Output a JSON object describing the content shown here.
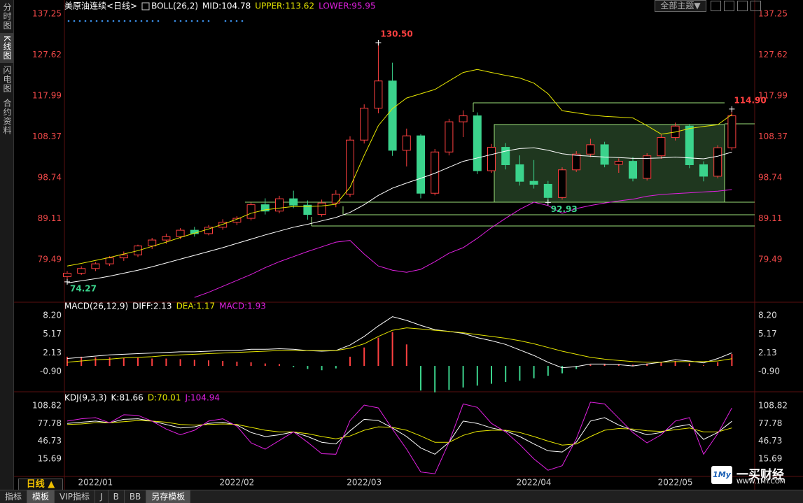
{
  "chart_data": [
    {
      "type": "candlestick",
      "title": "美原油连续<日线>",
      "indicator": "BOLL(26,2)",
      "ylim": [
        69.8,
        137.25
      ],
      "yticks": [
        137.25,
        127.62,
        117.99,
        108.37,
        98.74,
        89.11,
        79.49
      ],
      "tick_color": "#f04848",
      "up_color": "#ff4040",
      "down_color": "#3bd38c",
      "open": [
        75.5,
        76.3,
        77.4,
        78.5,
        79.9,
        80.6,
        82.7,
        84.1,
        84.9,
        86.4,
        85.6,
        87.1,
        88.3,
        89.2,
        92.4,
        90.9,
        93.8,
        92.3,
        90.1,
        92.8,
        94.9,
        107.6,
        115.1,
        121.5,
        105.2,
        108.6,
        95.1,
        104.8,
        111.9,
        113.3,
        100.4,
        105.9,
        101.8,
        97.9,
        97.2,
        94.1,
        100.6,
        104.3,
        106.5,
        101.9,
        102.6,
        98.6,
        103.9,
        108.2,
        110.9,
        101.8,
        99.1,
        105.8
      ],
      "high": [
        76.8,
        77.9,
        78.9,
        80.3,
        81.4,
        83.0,
        84.6,
        85.6,
        86.9,
        87.2,
        87.6,
        89.0,
        89.7,
        92.9,
        93.9,
        94.5,
        95.7,
        93.4,
        93.6,
        95.8,
        108.5,
        116.0,
        130.5,
        125.8,
        110.3,
        109.0,
        105.5,
        112.6,
        114.6,
        114.1,
        106.7,
        106.9,
        104.0,
        102.9,
        98.0,
        101.2,
        105.0,
        107.9,
        107.2,
        103.3,
        103.6,
        104.5,
        108.9,
        111.7,
        111.4,
        102.6,
        106.4,
        114.9
      ],
      "low": [
        74.27,
        75.9,
        76.8,
        78.0,
        79.2,
        80.1,
        82.0,
        83.2,
        84.3,
        84.9,
        85.2,
        86.5,
        87.6,
        88.7,
        90.1,
        90.4,
        91.6,
        88.9,
        89.6,
        91.8,
        94.2,
        106.8,
        113.9,
        103.9,
        101.4,
        93.9,
        94.6,
        104.0,
        108.3,
        99.6,
        99.9,
        100.7,
        96.9,
        96.2,
        92.93,
        93.6,
        100.1,
        103.6,
        101.2,
        99.9,
        97.9,
        98.1,
        103.2,
        107.5,
        101.0,
        97.9,
        98.6,
        105.2
      ],
      "close": [
        76.3,
        77.4,
        78.5,
        79.9,
        80.6,
        82.7,
        84.1,
        84.9,
        86.4,
        85.6,
        87.1,
        88.3,
        89.2,
        92.4,
        90.9,
        93.8,
        92.3,
        90.1,
        92.8,
        94.9,
        107.6,
        115.1,
        121.5,
        105.2,
        108.6,
        95.1,
        104.8,
        111.9,
        113.3,
        100.4,
        105.9,
        101.8,
        97.9,
        97.2,
        94.1,
        100.6,
        104.3,
        106.5,
        101.9,
        102.6,
        98.6,
        103.9,
        108.2,
        110.9,
        101.8,
        99.1,
        105.8,
        113.3
      ],
      "series": [
        {
          "name": "MID:104.78",
          "color": "#ffffff",
          "values": [
            74.0,
            74.5,
            75.0,
            75.6,
            76.3,
            77.0,
            77.8,
            78.7,
            79.6,
            80.5,
            81.4,
            82.3,
            83.3,
            84.3,
            85.3,
            86.2,
            87.1,
            87.8,
            88.6,
            89.4,
            90.6,
            92.4,
            94.6,
            96.3,
            97.5,
            98.6,
            99.8,
            101.2,
            102.6,
            103.4,
            104.2,
            105.0,
            105.6,
            105.8,
            105.2,
            104.4,
            104.0,
            103.8,
            103.6,
            103.5,
            103.3,
            103.3,
            103.4,
            103.6,
            103.4,
            103.2,
            103.8,
            104.78
          ]
        },
        {
          "name": "UPPER:113.62",
          "color": "#e6e600",
          "values": [
            78.0,
            78.6,
            79.3,
            80.0,
            80.8,
            81.6,
            82.6,
            83.6,
            84.7,
            85.7,
            86.7,
            87.8,
            89.0,
            90.4,
            91.2,
            91.6,
            92.0,
            92.0,
            92.1,
            92.5,
            96.5,
            104.0,
            111.0,
            115.0,
            117.5,
            118.5,
            119.5,
            121.5,
            123.5,
            124.2,
            123.5,
            122.8,
            122.2,
            121.0,
            118.5,
            114.5,
            114.0,
            113.5,
            113.2,
            113.0,
            112.8,
            111.0,
            109.0,
            109.5,
            110.3,
            110.8,
            111.2,
            113.62
          ]
        },
        {
          "name": "LOWER:95.95",
          "color": "#e020e0",
          "values": [
            null,
            null,
            null,
            null,
            null,
            null,
            null,
            null,
            null,
            70.6,
            71.8,
            73.2,
            74.6,
            76.0,
            77.6,
            79.0,
            80.2,
            81.4,
            82.5,
            83.6,
            84.0,
            80.8,
            78.0,
            77.0,
            76.5,
            77.2,
            79.0,
            81.0,
            82.3,
            84.5,
            87.0,
            89.2,
            91.3,
            93.0,
            92.2,
            90.4,
            91.5,
            92.2,
            92.8,
            93.3,
            93.7,
            94.4,
            94.8,
            95.0,
            95.2,
            95.4,
            95.6,
            95.95
          ]
        }
      ],
      "annotations": [
        {
          "text": "130.50",
          "value": 130.5,
          "color": "#ff4040"
        },
        {
          "text": "74.27",
          "value": 74.27,
          "color": "#3bd38c"
        },
        {
          "text": "92.93",
          "value": 92.93,
          "color": "#3bd38c"
        },
        {
          "text": "114.90",
          "value": 114.9,
          "color": "#ff4040"
        }
      ]
    },
    {
      "type": "macd",
      "indicator": "MACD(26,12,9)",
      "ylim": [
        -4.2,
        9.45
      ],
      "yticks": [
        {
          "value": 8.2,
          "label": "8.20"
        },
        5.17,
        2.13,
        {
          "value": -0.9,
          "label": "-0.90"
        }
      ],
      "tick_color": "#dddddd",
      "series": [
        {
          "name": "DIFF:2.13",
          "color": "#ffffff",
          "values": [
            1.2,
            1.4,
            1.6,
            1.8,
            1.9,
            2.0,
            2.1,
            2.2,
            2.3,
            2.3,
            2.4,
            2.5,
            2.5,
            2.7,
            2.7,
            2.8,
            2.7,
            2.5,
            2.4,
            2.5,
            3.4,
            4.8,
            6.5,
            8.0,
            7.4,
            6.6,
            5.9,
            5.6,
            5.3,
            4.6,
            4.1,
            3.5,
            2.6,
            1.7,
            0.6,
            -0.3,
            -0.1,
            0.3,
            0.3,
            0.2,
            0.0,
            0.3,
            0.6,
            1.0,
            0.8,
            0.5,
            1.2,
            2.13
          ]
        },
        {
          "name": "DEA:1.17",
          "color": "#e6e600",
          "values": [
            0.6,
            0.8,
            1.0,
            1.1,
            1.3,
            1.4,
            1.5,
            1.7,
            1.8,
            1.9,
            2.0,
            2.1,
            2.2,
            2.3,
            2.4,
            2.5,
            2.5,
            2.5,
            2.5,
            2.5,
            2.9,
            3.6,
            4.8,
            5.8,
            6.2,
            6.0,
            5.8,
            5.6,
            5.4,
            5.1,
            4.8,
            4.5,
            4.1,
            3.6,
            3.0,
            2.4,
            1.9,
            1.4,
            1.1,
            0.9,
            0.7,
            0.6,
            0.6,
            0.7,
            0.7,
            0.7,
            0.8,
            1.17
          ]
        }
      ],
      "bars": {
        "name": "MACD:1.93",
        "color": "#e020e0",
        "up_color": "#ff4040",
        "down_color": "#3bd38c",
        "values": [
          1.5,
          1.5,
          1.4,
          1.4,
          1.3,
          1.3,
          1.2,
          1.2,
          1.1,
          1.0,
          0.9,
          0.8,
          0.7,
          0.6,
          0.4,
          0.3,
          -0.2,
          -0.5,
          -0.7,
          -0.4,
          1.5,
          3.0,
          4.6,
          5.5,
          3.5,
          -4.0,
          -4.3,
          -3.9,
          -3.5,
          -3.2,
          -2.9,
          -2.6,
          -2.4,
          -2.0,
          -1.6,
          -1.2,
          -0.5,
          0.2,
          0.3,
          0.3,
          0.2,
          0.4,
          0.6,
          0.8,
          0.4,
          0.1,
          0.6,
          1.93
        ]
      }
    },
    {
      "type": "line",
      "indicator": "KDJ(9,3,3)",
      "ylim": [
        -13.5,
        127.1
      ],
      "yticks": [
        108.82,
        77.78,
        46.73,
        15.69
      ],
      "tick_color": "#dddddd",
      "categories": [
        null,
        null,
        "2022/01",
        null,
        null,
        null,
        null,
        null,
        null,
        null,
        null,
        null,
        "2022/02",
        null,
        null,
        null,
        null,
        null,
        null,
        null,
        null,
        "2022/03",
        null,
        null,
        null,
        null,
        null,
        null,
        null,
        null,
        null,
        null,
        null,
        "2022/04",
        null,
        null,
        null,
        null,
        null,
        null,
        null,
        null,
        null,
        "2022/05",
        null,
        null,
        null,
        null
      ],
      "series": [
        {
          "name": "K:81.66",
          "color": "#ffffff",
          "values": [
            78,
            80,
            82,
            79,
            85,
            86,
            82,
            76,
            70,
            72,
            78,
            80,
            75,
            62,
            55,
            58,
            63,
            55,
            45,
            42,
            65,
            85,
            83,
            70,
            55,
            35,
            24,
            45,
            82,
            78,
            70,
            65,
            55,
            42,
            30,
            28,
            45,
            82,
            88,
            75,
            66,
            58,
            62,
            72,
            76,
            50,
            62,
            81.66
          ]
        },
        {
          "name": "D:70.01",
          "color": "#e6e600",
          "values": [
            76,
            77,
            79,
            79,
            81,
            83,
            82,
            80,
            76,
            75,
            76,
            77,
            76,
            71,
            66,
            63,
            63,
            60,
            55,
            51,
            56,
            66,
            72,
            71,
            66,
            56,
            45,
            45,
            57,
            64,
            66,
            66,
            62,
            55,
            47,
            40,
            42,
            55,
            66,
            69,
            68,
            65,
            64,
            67,
            70,
            63,
            63,
            70.01
          ]
        },
        {
          "name": "J:104.94",
          "color": "#e020e0",
          "values": [
            82,
            86,
            88,
            79,
            93,
            92,
            82,
            68,
            58,
            66,
            82,
            86,
            73,
            44,
            33,
            48,
            63,
            45,
            25,
            24,
            83,
            110,
            105,
            68,
            33,
            -7,
            -10,
            45,
            112,
            106,
            78,
            63,
            41,
            16,
            -4,
            4,
            51,
            115,
            112,
            87,
            62,
            44,
            58,
            82,
            88,
            24,
            60,
            104.94
          ]
        }
      ]
    }
  ],
  "ui": {
    "sidebar": [
      "分时图",
      "K线图",
      "闪电图",
      "合约资料"
    ],
    "period": "日线 ▲",
    "theme_button": "全部主题▼",
    "bottom_tabs": [
      "指标",
      "模板",
      "VIP指标",
      "J",
      "B",
      "BB",
      "另存模板"
    ],
    "logo_badge": "1My",
    "logo": "一买财经",
    "logo_url": "WWW.1MY.COM"
  }
}
